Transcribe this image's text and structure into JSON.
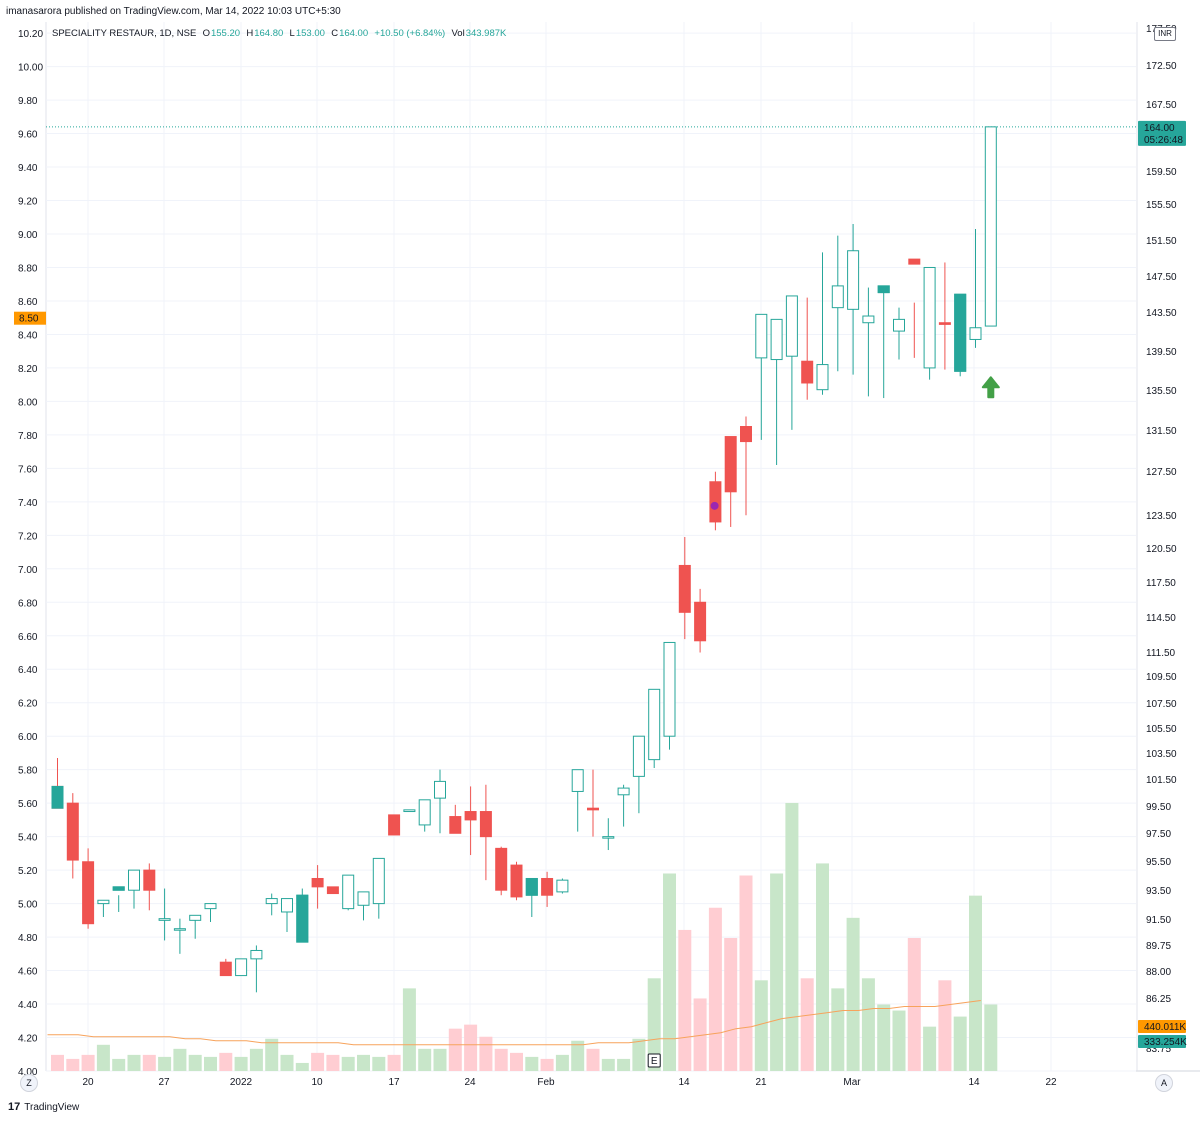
{
  "header": {
    "publisher": "imanasarora published on TradingView.com, Mar 14, 2022 10:03 UTC+5:30"
  },
  "legend": {
    "symbol": "SPECIALITY RESTAUR, 1D, NSE",
    "o_label": "O",
    "o_value": "155.20",
    "h_label": "H",
    "h_value": "164.80",
    "l_label": "L",
    "l_value": "153.00",
    "c_label": "C",
    "c_value": "164.00",
    "change": "+10.50 (+6.84%)",
    "vol_label": "Vol",
    "vol_value": "343.987K"
  },
  "currency_label": "INR",
  "left_axis": {
    "ticks": [
      "10.20",
      "10.00",
      "9.80",
      "9.60",
      "9.40",
      "9.20",
      "9.00",
      "8.80",
      "8.60",
      "8.40",
      "8.20",
      "8.00",
      "7.80",
      "7.60",
      "7.40",
      "7.20",
      "7.00",
      "6.80",
      "6.60",
      "6.40",
      "6.20",
      "6.00",
      "5.80",
      "5.60",
      "5.40",
      "5.20",
      "5.00",
      "4.80",
      "4.60",
      "4.40",
      "4.20",
      "4.00"
    ],
    "highlight": "8.50",
    "highlight_color": "#ff9800"
  },
  "right_axis": {
    "ticks": [
      "177.50",
      "172.50",
      "167.50",
      "159.50",
      "155.50",
      "151.50",
      "147.50",
      "143.50",
      "139.50",
      "135.50",
      "131.50",
      "127.50",
      "123.50",
      "120.50",
      "117.50",
      "114.50",
      "111.50",
      "109.50",
      "107.50",
      "105.50",
      "103.50",
      "101.50",
      "99.50",
      "97.50",
      "95.50",
      "93.50",
      "91.50",
      "89.75",
      "88.00",
      "86.25",
      "84.50",
      "83.75"
    ]
  },
  "price_label": {
    "value": "164.00",
    "countdown": "05:26:48",
    "color": "#26a69a"
  },
  "vol_ma_label": {
    "value": "440.011K",
    "color": "#ff9800"
  },
  "vol_label": {
    "value": "333.254K",
    "color": "#26a69a"
  },
  "x_axis": {
    "labels": [
      "20",
      "27",
      "2022",
      "10",
      "17",
      "24",
      "Feb",
      "14",
      "21",
      "Mar",
      "14",
      "22"
    ]
  },
  "corner_buttons": {
    "left": "Z",
    "right": "A"
  },
  "earnings_marker": "E",
  "footer": {
    "brand": "TradingView",
    "logo": "17"
  },
  "colors": {
    "up": "#26a69a",
    "down": "#ef5350",
    "vol_up": "#c8e6c9",
    "vol_down": "#ffcdd2",
    "ma": "#f7a35c",
    "dot": "#9c27b0",
    "arrow": "#43a047"
  },
  "chart_data": {
    "type": "candlestick",
    "ylim": [
      4.0,
      10.2
    ],
    "x": [
      "2021-12-15",
      "2021-12-16",
      "2021-12-17",
      "2021-12-20",
      "2021-12-21",
      "2021-12-22",
      "2021-12-23",
      "2021-12-24",
      "2021-12-27",
      "2021-12-28",
      "2021-12-29",
      "2021-12-30",
      "2021-12-31",
      "2022-01-03",
      "2022-01-04",
      "2022-01-05",
      "2022-01-06",
      "2022-01-07",
      "2022-01-10",
      "2022-01-11",
      "2022-01-12",
      "2022-01-13",
      "2022-01-14",
      "2022-01-17",
      "2022-01-18",
      "2022-01-19",
      "2022-01-20",
      "2022-01-21",
      "2022-01-24",
      "2022-01-25",
      "2022-01-27",
      "2022-01-28",
      "2022-01-31",
      "2022-02-01",
      "2022-02-02",
      "2022-02-03",
      "2022-02-04",
      "2022-02-07",
      "2022-02-08",
      "2022-02-09",
      "2022-02-10",
      "2022-02-11",
      "2022-02-14",
      "2022-02-15",
      "2022-02-16",
      "2022-02-17",
      "2022-02-18",
      "2022-02-21",
      "2022-02-22",
      "2022-02-23",
      "2022-02-24",
      "2022-02-25",
      "2022-02-28",
      "2022-03-02",
      "2022-03-03",
      "2022-03-04",
      "2022-03-07",
      "2022-03-08",
      "2022-03-09",
      "2022-03-10",
      "2022-03-11",
      "2022-03-14"
    ],
    "series": [
      {
        "name": "open",
        "values": [
          5.7,
          5.6,
          5.25,
          5.0,
          5.08,
          5.08,
          5.2,
          4.9,
          4.85,
          4.9,
          4.97,
          4.65,
          4.57,
          4.67,
          5.0,
          4.95,
          4.77,
          5.15,
          5.1,
          4.97,
          4.99,
          5.0,
          5.53,
          5.55,
          5.47,
          5.63,
          5.52,
          5.55,
          5.55,
          5.33,
          5.23,
          5.05,
          5.15,
          5.07,
          5.67,
          5.57,
          5.4,
          5.65,
          5.76,
          5.86,
          6.0,
          7.02,
          6.8,
          7.52,
          7.79,
          7.85,
          8.26,
          8.25,
          8.27,
          8.24,
          8.07,
          8.56,
          8.55,
          8.47,
          8.65,
          8.42,
          8.85,
          8.2,
          8.47,
          8.18,
          8.37,
          8.45
        ]
      },
      {
        "name": "high",
        "values": [
          5.87,
          5.66,
          5.33,
          5.02,
          5.05,
          5.13,
          5.24,
          5.09,
          4.91,
          4.92,
          4.99,
          4.67,
          4.6,
          4.75,
          5.06,
          4.98,
          5.09,
          5.23,
          5.1,
          5.04,
          5.05,
          5.06,
          5.45,
          5.55,
          5.58,
          5.8,
          5.59,
          5.7,
          5.71,
          5.34,
          5.25,
          5.05,
          5.19,
          5.15,
          5.8,
          5.8,
          5.51,
          5.71,
          5.8,
          5.87,
          6.2,
          7.19,
          6.88,
          7.58,
          7.75,
          7.91,
          8.41,
          8.39,
          8.36,
          8.62,
          8.89,
          8.99,
          9.06,
          8.68,
          8.66,
          8.56,
          8.59,
          8.61,
          8.83,
          8.6,
          9.03,
          9.64
        ]
      },
      {
        "name": "low",
        "values": [
          5.6,
          5.15,
          4.85,
          4.92,
          4.95,
          4.97,
          4.96,
          4.78,
          4.7,
          4.79,
          4.89,
          4.65,
          4.57,
          4.47,
          4.93,
          4.83,
          4.77,
          4.97,
          5.06,
          4.96,
          4.9,
          4.91,
          5.45,
          5.55,
          5.43,
          5.42,
          5.42,
          5.29,
          5.14,
          5.05,
          5.02,
          4.92,
          4.98,
          5.06,
          5.43,
          5.4,
          5.32,
          5.46,
          5.54,
          5.81,
          5.92,
          6.58,
          6.5,
          7.23,
          7.25,
          7.32,
          7.77,
          7.62,
          7.83,
          8.01,
          8.04,
          8.18,
          8.16,
          8.03,
          8.02,
          8.25,
          8.26,
          8.13,
          8.19,
          8.15,
          8.32,
          8.52
        ]
      },
      {
        "name": "close",
        "values": [
          5.57,
          5.26,
          4.88,
          5.02,
          5.1,
          5.2,
          5.08,
          4.91,
          4.85,
          4.93,
          5.0,
          4.57,
          4.67,
          4.72,
          5.03,
          5.03,
          5.05,
          5.1,
          5.06,
          5.17,
          5.07,
          5.27,
          5.41,
          5.56,
          5.62,
          5.73,
          5.42,
          5.5,
          5.4,
          5.08,
          5.04,
          5.15,
          5.05,
          5.14,
          5.8,
          5.56,
          5.4,
          5.69,
          6.0,
          6.28,
          6.56,
          6.74,
          6.57,
          7.28,
          7.46,
          7.76,
          8.52,
          8.49,
          8.63,
          8.11,
          8.22,
          8.69,
          8.9,
          8.51,
          8.69,
          8.49,
          8.82,
          8.8,
          8.46,
          8.64,
          8.44,
          9.64
        ]
      },
      {
        "name": "volume",
        "values": [
          0.08,
          0.06,
          0.08,
          0.13,
          0.06,
          0.08,
          0.08,
          0.07,
          0.11,
          0.08,
          0.07,
          0.09,
          0.07,
          0.11,
          0.16,
          0.08,
          0.04,
          0.09,
          0.08,
          0.07,
          0.08,
          0.07,
          0.08,
          0.41,
          0.11,
          0.11,
          0.21,
          0.23,
          0.17,
          0.11,
          0.09,
          0.07,
          0.06,
          0.08,
          0.15,
          0.11,
          0.06,
          0.06,
          0.16,
          0.46,
          0.98,
          0.7,
          0.36,
          0.81,
          0.66,
          0.97,
          0.45,
          0.98,
          1.33,
          0.46,
          1.03,
          0.41,
          0.76,
          0.46,
          0.33,
          0.3,
          0.66,
          0.22,
          0.45,
          0.27,
          0.87,
          0.33
        ]
      }
    ],
    "volume_scale": 1.3,
    "volume_ma": [
      0.18,
      0.18,
      0.18,
      0.17,
      0.17,
      0.17,
      0.17,
      0.17,
      0.17,
      0.16,
      0.16,
      0.15,
      0.15,
      0.15,
      0.14,
      0.14,
      0.14,
      0.14,
      0.14,
      0.14,
      0.13,
      0.13,
      0.13,
      0.13,
      0.13,
      0.13,
      0.13,
      0.13,
      0.13,
      0.13,
      0.13,
      0.13,
      0.13,
      0.13,
      0.13,
      0.13,
      0.14,
      0.14,
      0.14,
      0.15,
      0.16,
      0.16,
      0.17,
      0.18,
      0.19,
      0.21,
      0.22,
      0.24,
      0.26,
      0.27,
      0.28,
      0.29,
      0.3,
      0.3,
      0.31,
      0.31,
      0.32,
      0.32,
      0.32,
      0.33,
      0.34,
      0.35
    ],
    "last_price": 9.64,
    "signals": [
      {
        "index": 42,
        "type": "dot",
        "value": 7.4
      },
      {
        "index": 61,
        "type": "up-arrow",
        "value": 8.12
      }
    ],
    "grid": true
  }
}
